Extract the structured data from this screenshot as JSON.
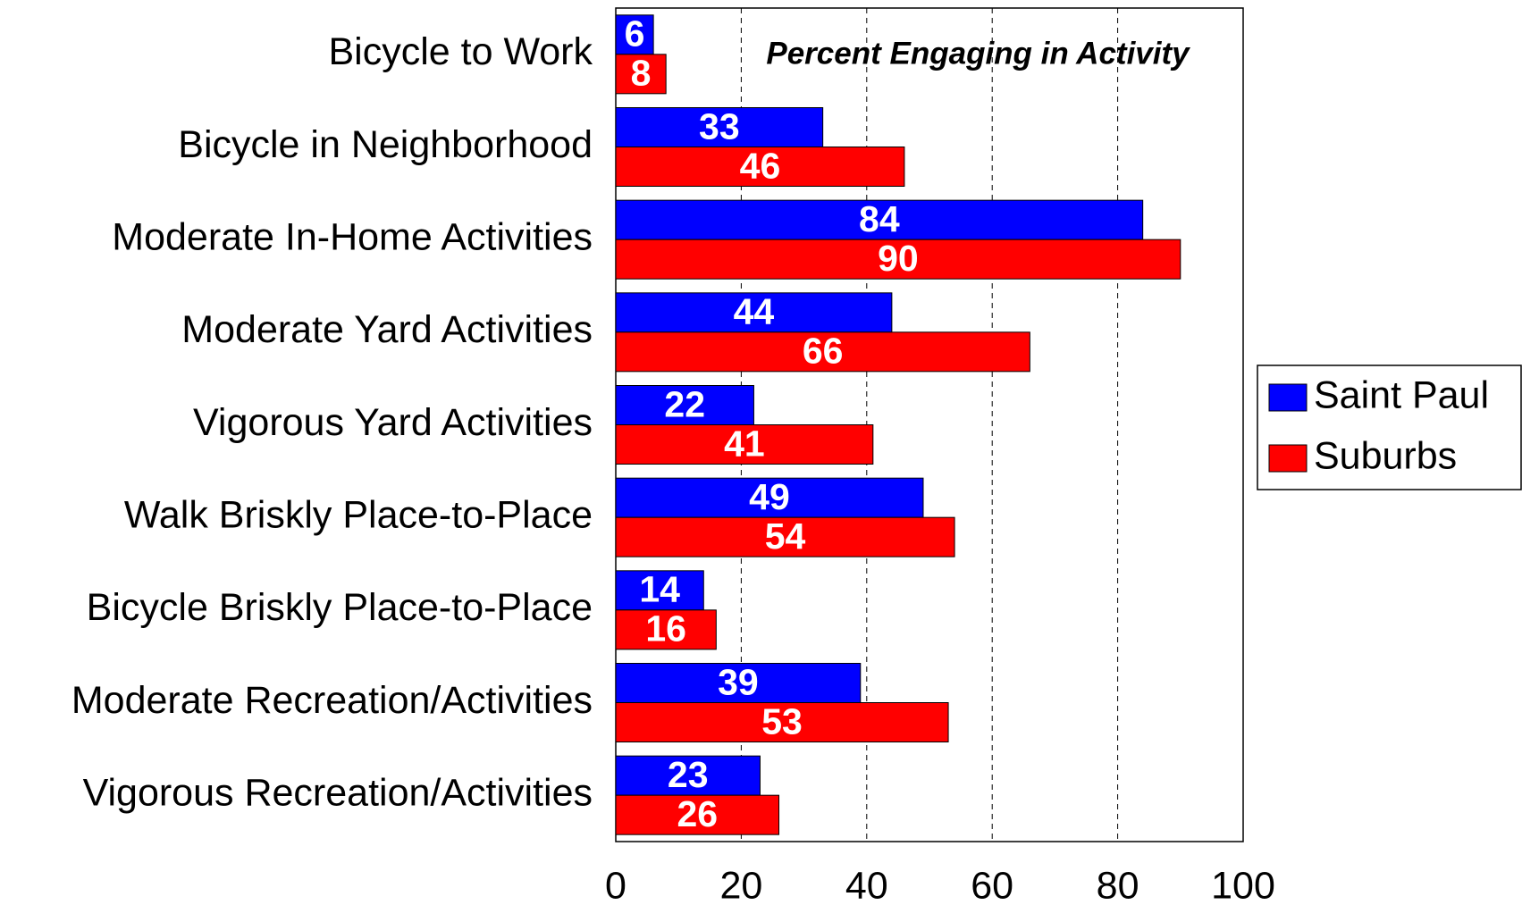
{
  "chart_data": {
    "type": "barh",
    "annotation": "Percent Engaging in Activity",
    "categories": [
      "Bicycle to Work",
      "Bicycle in Neighborhood",
      "Moderate In-Home Activities",
      "Moderate Yard Activities",
      "Vigorous Yard Activities",
      "Walk Briskly Place-to-Place",
      "Bicycle Briskly Place-to-Place",
      "Moderate Recreation/Activities",
      "Vigorous Recreation/Activities"
    ],
    "series": [
      {
        "name": "Saint Paul",
        "color": "#0000ff",
        "values": [
          6,
          33,
          84,
          44,
          22,
          49,
          14,
          39,
          23
        ]
      },
      {
        "name": "Suburbs",
        "color": "#ff0000",
        "values": [
          8,
          46,
          90,
          66,
          41,
          54,
          16,
          53,
          26
        ]
      }
    ],
    "xlim": [
      0,
      100
    ],
    "xticks": [
      0,
      20,
      40,
      60,
      80,
      100
    ],
    "grid": true,
    "legend": "right"
  }
}
